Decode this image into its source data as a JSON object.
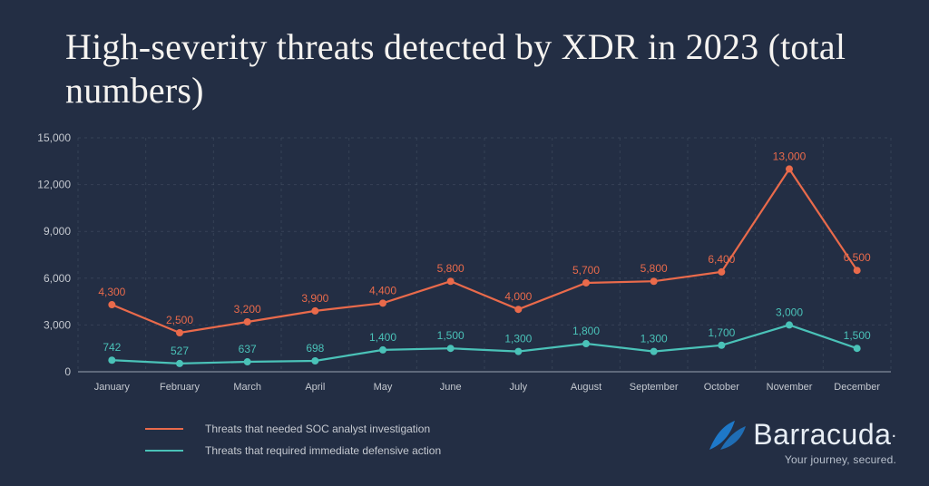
{
  "title": "High-severity threats detected by XDR in 2023 (total numbers)",
  "chart": {
    "type": "line",
    "background_color": "#232e44",
    "grid_color": "#4a5568",
    "axis_color": "#9aa3b0",
    "label_color": "#c5c9d0",
    "axis_fontsize": 12,
    "month_fontsize": 11,
    "point_label_fontsize": 12,
    "line_width": 2.2,
    "marker_radius": 4,
    "y": {
      "min": 0,
      "max": 15000,
      "step": 3000,
      "ticks": [
        "0",
        "3,000",
        "6,000",
        "9,000",
        "12,000",
        "15,000"
      ]
    },
    "months": [
      "January",
      "February",
      "March",
      "April",
      "May",
      "June",
      "July",
      "August",
      "September",
      "October",
      "November",
      "December"
    ],
    "series": [
      {
        "id": "soc",
        "name": "Threats that needed SOC analyst investigation",
        "color": "#e96a4b",
        "values": [
          4300,
          2500,
          3200,
          3900,
          4400,
          5800,
          4000,
          5700,
          5800,
          6400,
          13000,
          6500
        ],
        "labels": [
          "4,300",
          "2,500",
          "3,200",
          "3,900",
          "4,400",
          "5,800",
          "4,000",
          "5,700",
          "5,800",
          "6,400",
          "13,000",
          "6,500"
        ]
      },
      {
        "id": "def",
        "name": "Threats that required immediate defensive action",
        "color": "#4ac2b8",
        "values": [
          742,
          527,
          637,
          698,
          1400,
          1500,
          1300,
          1800,
          1300,
          1700,
          3000,
          1500
        ],
        "labels": [
          "742",
          "527",
          "637",
          "698",
          "1,400",
          "1,500",
          "1,300",
          "1,800",
          "1,300",
          "1,700",
          "3,000",
          "1,500"
        ]
      }
    ]
  },
  "legend": {
    "item0": "Threats that needed SOC analyst investigation",
    "item1": "Threats that required immediate defensive action"
  },
  "brand": {
    "name": "Barracuda",
    "tagline": "Your journey, secured.",
    "logo_color": "#1e78c8",
    "text_color": "#e8eef5"
  }
}
